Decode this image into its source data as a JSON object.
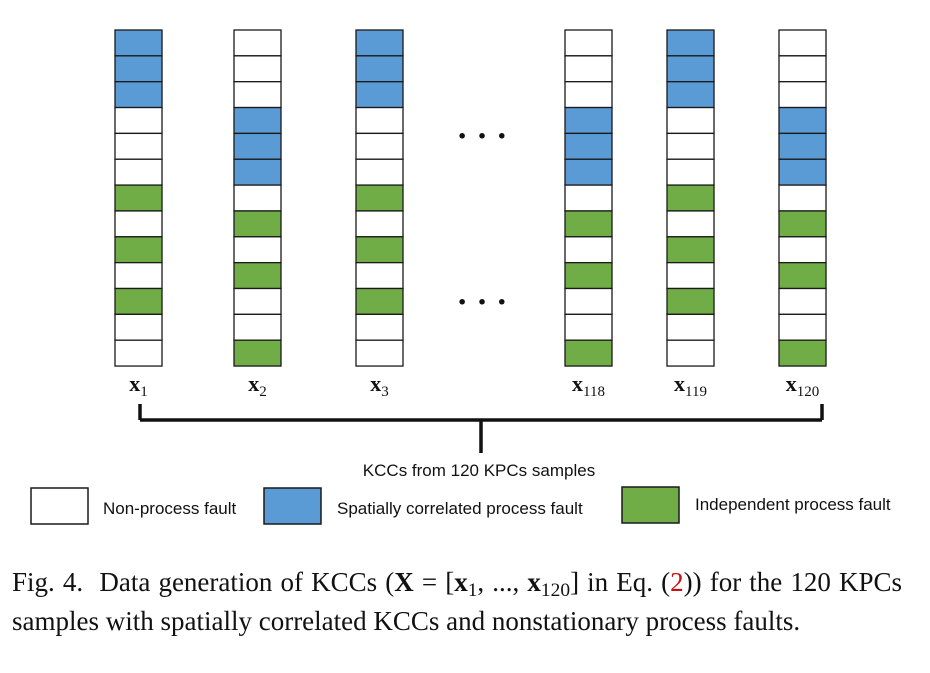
{
  "colors": {
    "blue": "#5b9bd5",
    "green": "#70ad47",
    "white": "#ffffff",
    "stroke": "#1a1a1a",
    "ref": "#c81010"
  },
  "columns": [
    {
      "var": "x",
      "sub": "1",
      "cells": [
        "B",
        "B",
        "B",
        "W",
        "W",
        "W",
        "G",
        "W",
        "G",
        "W",
        "G",
        "W",
        "W"
      ]
    },
    {
      "var": "x",
      "sub": "2",
      "cells": [
        "W",
        "W",
        "W",
        "B",
        "B",
        "B",
        "W",
        "G",
        "W",
        "G",
        "W",
        "W",
        "G"
      ]
    },
    {
      "var": "x",
      "sub": "3",
      "cells": [
        "B",
        "B",
        "B",
        "W",
        "W",
        "W",
        "G",
        "W",
        "G",
        "W",
        "G",
        "W",
        "W"
      ]
    },
    {
      "var": "x",
      "sub": "118",
      "cells": [
        "W",
        "W",
        "W",
        "B",
        "B",
        "B",
        "W",
        "G",
        "W",
        "G",
        "W",
        "W",
        "G"
      ]
    },
    {
      "var": "x",
      "sub": "119",
      "cells": [
        "B",
        "B",
        "B",
        "W",
        "W",
        "W",
        "G",
        "W",
        "G",
        "W",
        "G",
        "W",
        "W"
      ]
    },
    {
      "var": "x",
      "sub": "120",
      "cells": [
        "W",
        "W",
        "W",
        "B",
        "B",
        "B",
        "W",
        "G",
        "W",
        "G",
        "W",
        "W",
        "G"
      ]
    }
  ],
  "ellipsis": "· · ·",
  "brace_label": "KCCs from 120 KPCs samples",
  "legend": [
    {
      "key": "W",
      "label": "Non-process fault"
    },
    {
      "key": "B",
      "label": "Spatially correlated process fault"
    },
    {
      "key": "G",
      "label": "Independent process fault"
    }
  ],
  "caption": {
    "prefix": "Fig. 4.",
    "text_before": "Data generation of KCCs (",
    "bold_X": "X",
    "eq_open": " = [",
    "x1_var": "x",
    "x1_sub": "1",
    "mid": ", ..., ",
    "x120_var": "x",
    "x120_sub": "120",
    "eq_close": "] in Eq. (",
    "ref": "2",
    "text_after": ")) for the 120 KPCs samples with spatially correlated KCCs and nonstationary process faults."
  }
}
